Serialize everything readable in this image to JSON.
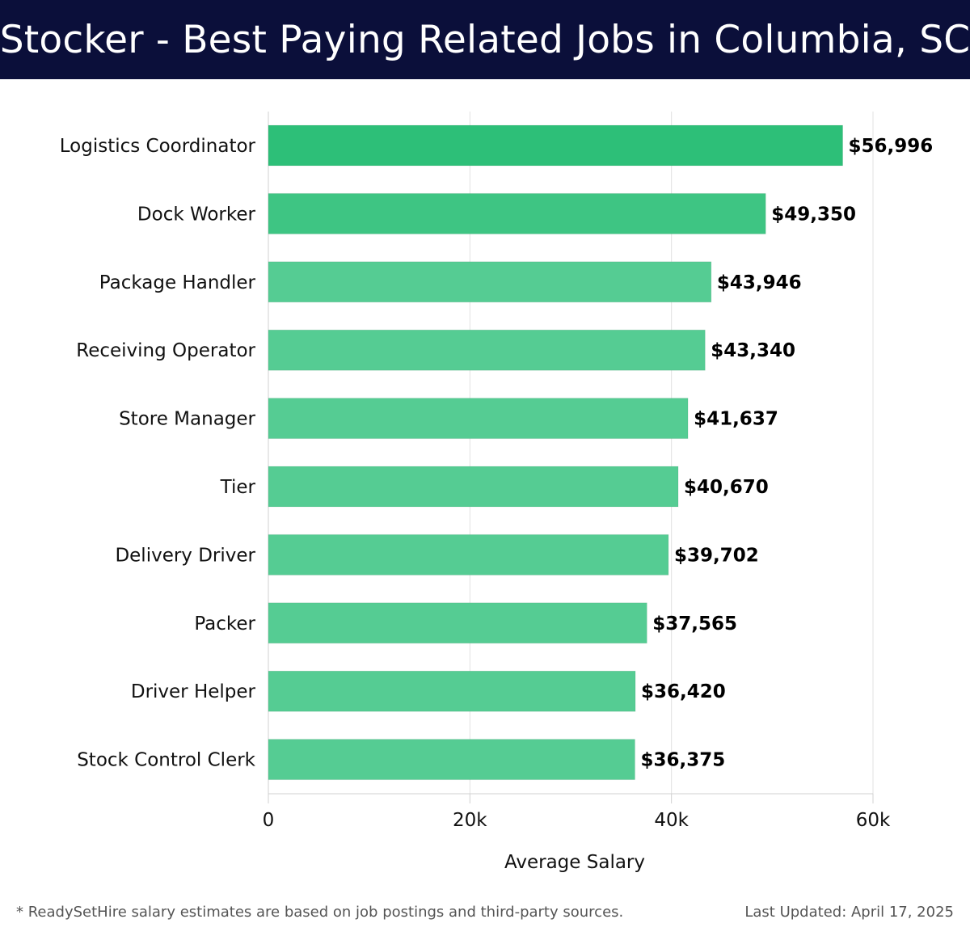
{
  "header": {
    "title": "Stocker - Best Paying Related Jobs in Columbia, SC"
  },
  "chart_data": {
    "type": "bar",
    "orientation": "horizontal",
    "title": "Stocker - Best Paying Related Jobs in Columbia, SC",
    "xlabel": "Average Salary",
    "ylabel": "",
    "xlim": [
      0,
      60000
    ],
    "ticks": [
      0,
      20000,
      40000,
      60000
    ],
    "tick_labels": [
      "0",
      "20k",
      "40k",
      "60k"
    ],
    "grid": true,
    "categories": [
      "Logistics Coordinator",
      "Dock Worker",
      "Package Handler",
      "Receiving Operator",
      "Store Manager",
      "Tier",
      "Delivery Driver",
      "Packer",
      "Driver Helper",
      "Stock Control Clerk"
    ],
    "values": [
      56996,
      49350,
      43946,
      43340,
      41637,
      40670,
      39702,
      37565,
      36420,
      36375
    ],
    "value_labels": [
      "$56,996",
      "$49,350",
      "$43,946",
      "$43,340",
      "$41,637",
      "$40,670",
      "$39,702",
      "$37,565",
      "$36,420",
      "$36,375"
    ],
    "colors": {
      "bar_top": "#2dbf78",
      "bar": "#55cc93",
      "grid": "#e2e2e2",
      "axis": "#d0d0d0",
      "text": "#111111"
    }
  },
  "footer": {
    "note": "* ReadySetHire salary estimates are based on job postings and third-party sources.",
    "updated": "Last Updated: April 17, 2025"
  }
}
